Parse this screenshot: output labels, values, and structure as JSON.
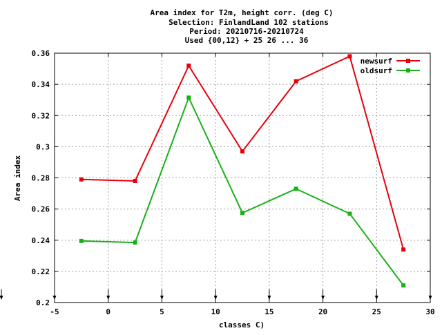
{
  "chart_data": {
    "type": "line",
    "title": [
      "Area index  for T2m, height corr. (deg C)",
      "Selection: FinlandLand    102 stations",
      "Period: 20210716-20210724",
      "Used {00,12} + 25 26 ... 36"
    ],
    "xlabel": "classes C)",
    "ylabel": "Area index",
    "xlim": [
      -5,
      30
    ],
    "ylim": [
      0.2,
      0.36
    ],
    "xticks": [
      -5,
      0,
      5,
      10,
      15,
      20,
      25,
      30
    ],
    "xtick_labels": [
      "-5",
      "0",
      "5",
      "10",
      "15",
      "20",
      "25",
      "30"
    ],
    "yticks": [
      0.2,
      0.22,
      0.24,
      0.26,
      0.28,
      0.3,
      0.32,
      0.34,
      0.36
    ],
    "ytick_labels": [
      "0.2",
      "0.22",
      "0.24",
      "0.26",
      "0.28",
      "0.3",
      "0.32",
      "0.34",
      "0.36"
    ],
    "grid": true,
    "legend_position": "top-right",
    "x": [
      -2.5,
      2.5,
      7.5,
      12.5,
      17.5,
      22.5,
      27.5
    ],
    "series": [
      {
        "name": "newsurf",
        "color": "#e8000b",
        "values": [
          0.279,
          0.278,
          0.352,
          0.297,
          0.342,
          0.358,
          0.234
        ]
      },
      {
        "name": "oldsurf",
        "color": "#18b018",
        "values": [
          0.2395,
          0.2385,
          0.3315,
          0.2575,
          0.273,
          0.257,
          0.211
        ]
      }
    ]
  }
}
